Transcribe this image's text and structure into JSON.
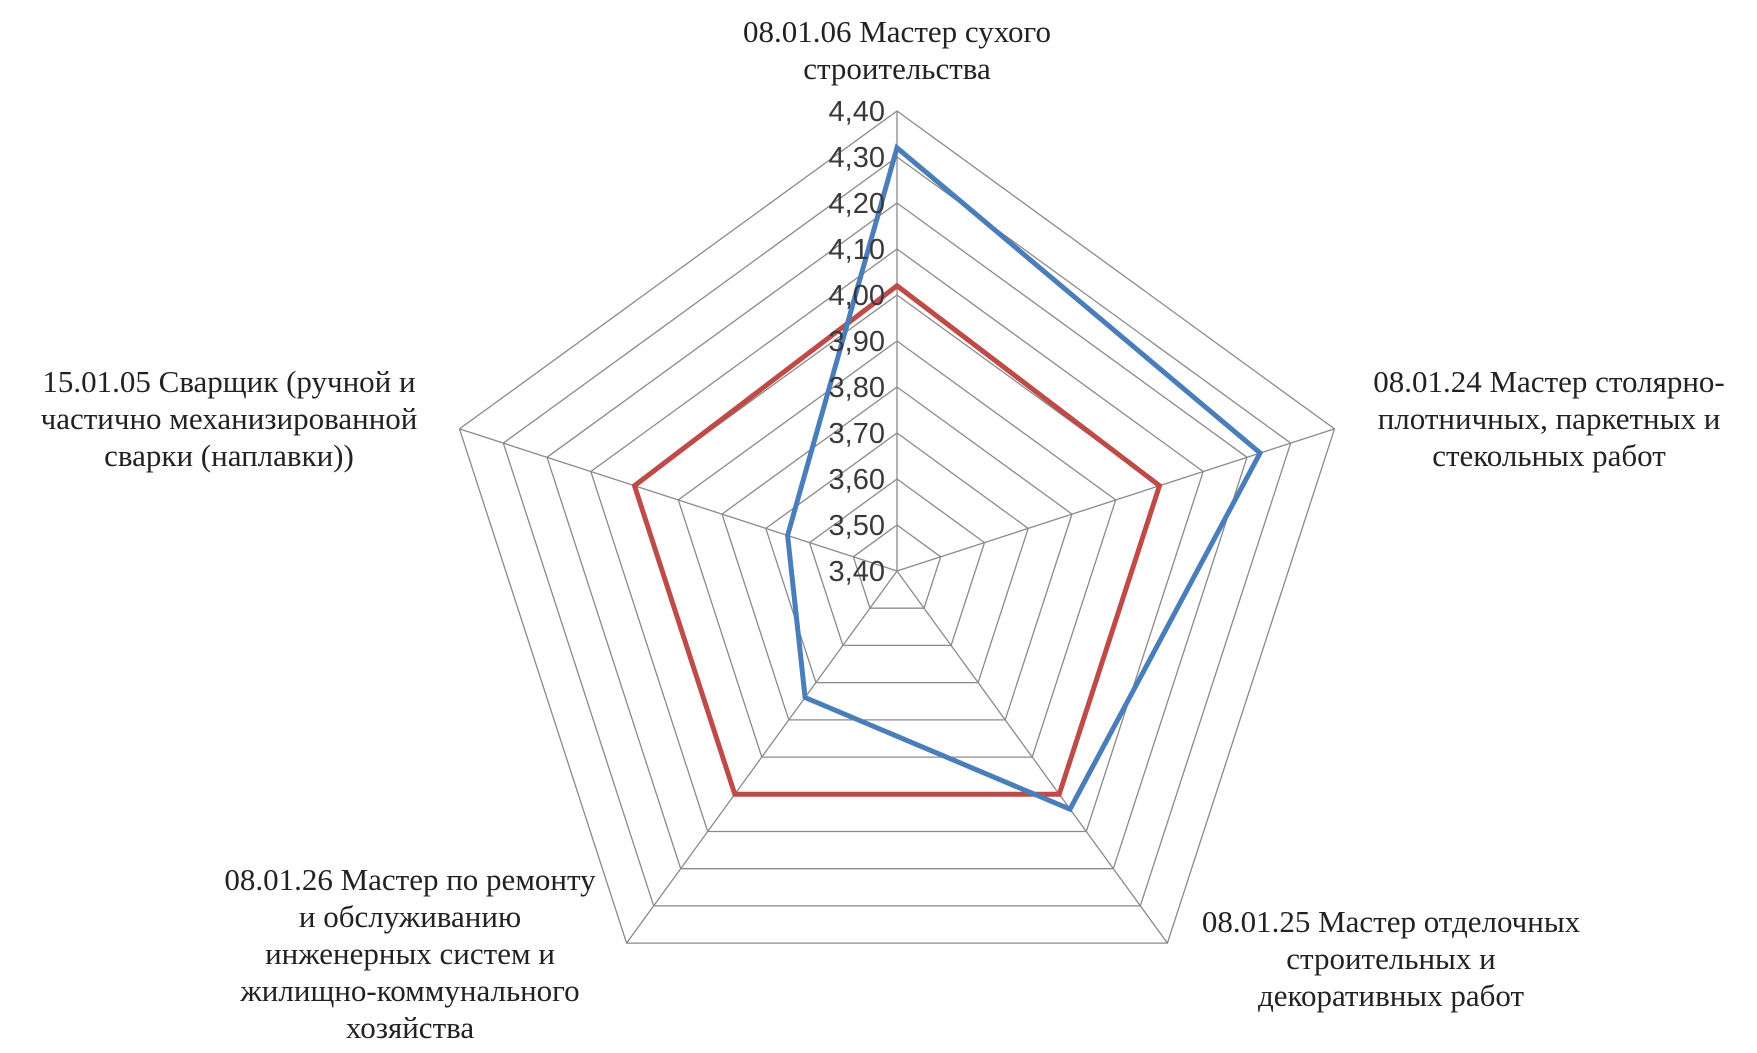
{
  "chart_data": {
    "type": "radar",
    "title": "",
    "axes": [
      {
        "label_lines": [
          "08.01.06 Мастер сухого",
          "строительства"
        ]
      },
      {
        "label_lines": [
          "08.01.24 Мастер столярно-",
          "плотничных, паркетных и",
          "стекольных работ"
        ]
      },
      {
        "label_lines": [
          "08.01.25 Мастер отделочных",
          "строительных и",
          "декоративных работ"
        ]
      },
      {
        "label_lines": [
          "08.01.26 Мастер по ремонту",
          "и обслуживанию",
          "инженерных  систем и",
          "жилищно-коммунального",
          "хозяйства"
        ]
      },
      {
        "label_lines": [
          "15.01.05 Сварщик (ручной и",
          "частично механизированной",
          "сварки (наплавки))"
        ]
      }
    ],
    "ticks": [
      "3,40",
      "3,50",
      "3,60",
      "3,70",
      "3,80",
      "3,90",
      "4,00",
      "4,10",
      "4,20",
      "4,30",
      "4,40"
    ],
    "range": [
      3.4,
      4.4
    ],
    "grid": true,
    "legend": "none",
    "series": [
      {
        "color": "#4a7ebb",
        "values": [
          4.32,
          4.23,
          4.04,
          3.74,
          3.65
        ]
      },
      {
        "color": "#be4b48",
        "values": [
          4.02,
          4.0,
          4.0,
          4.0,
          4.0
        ]
      }
    ]
  }
}
